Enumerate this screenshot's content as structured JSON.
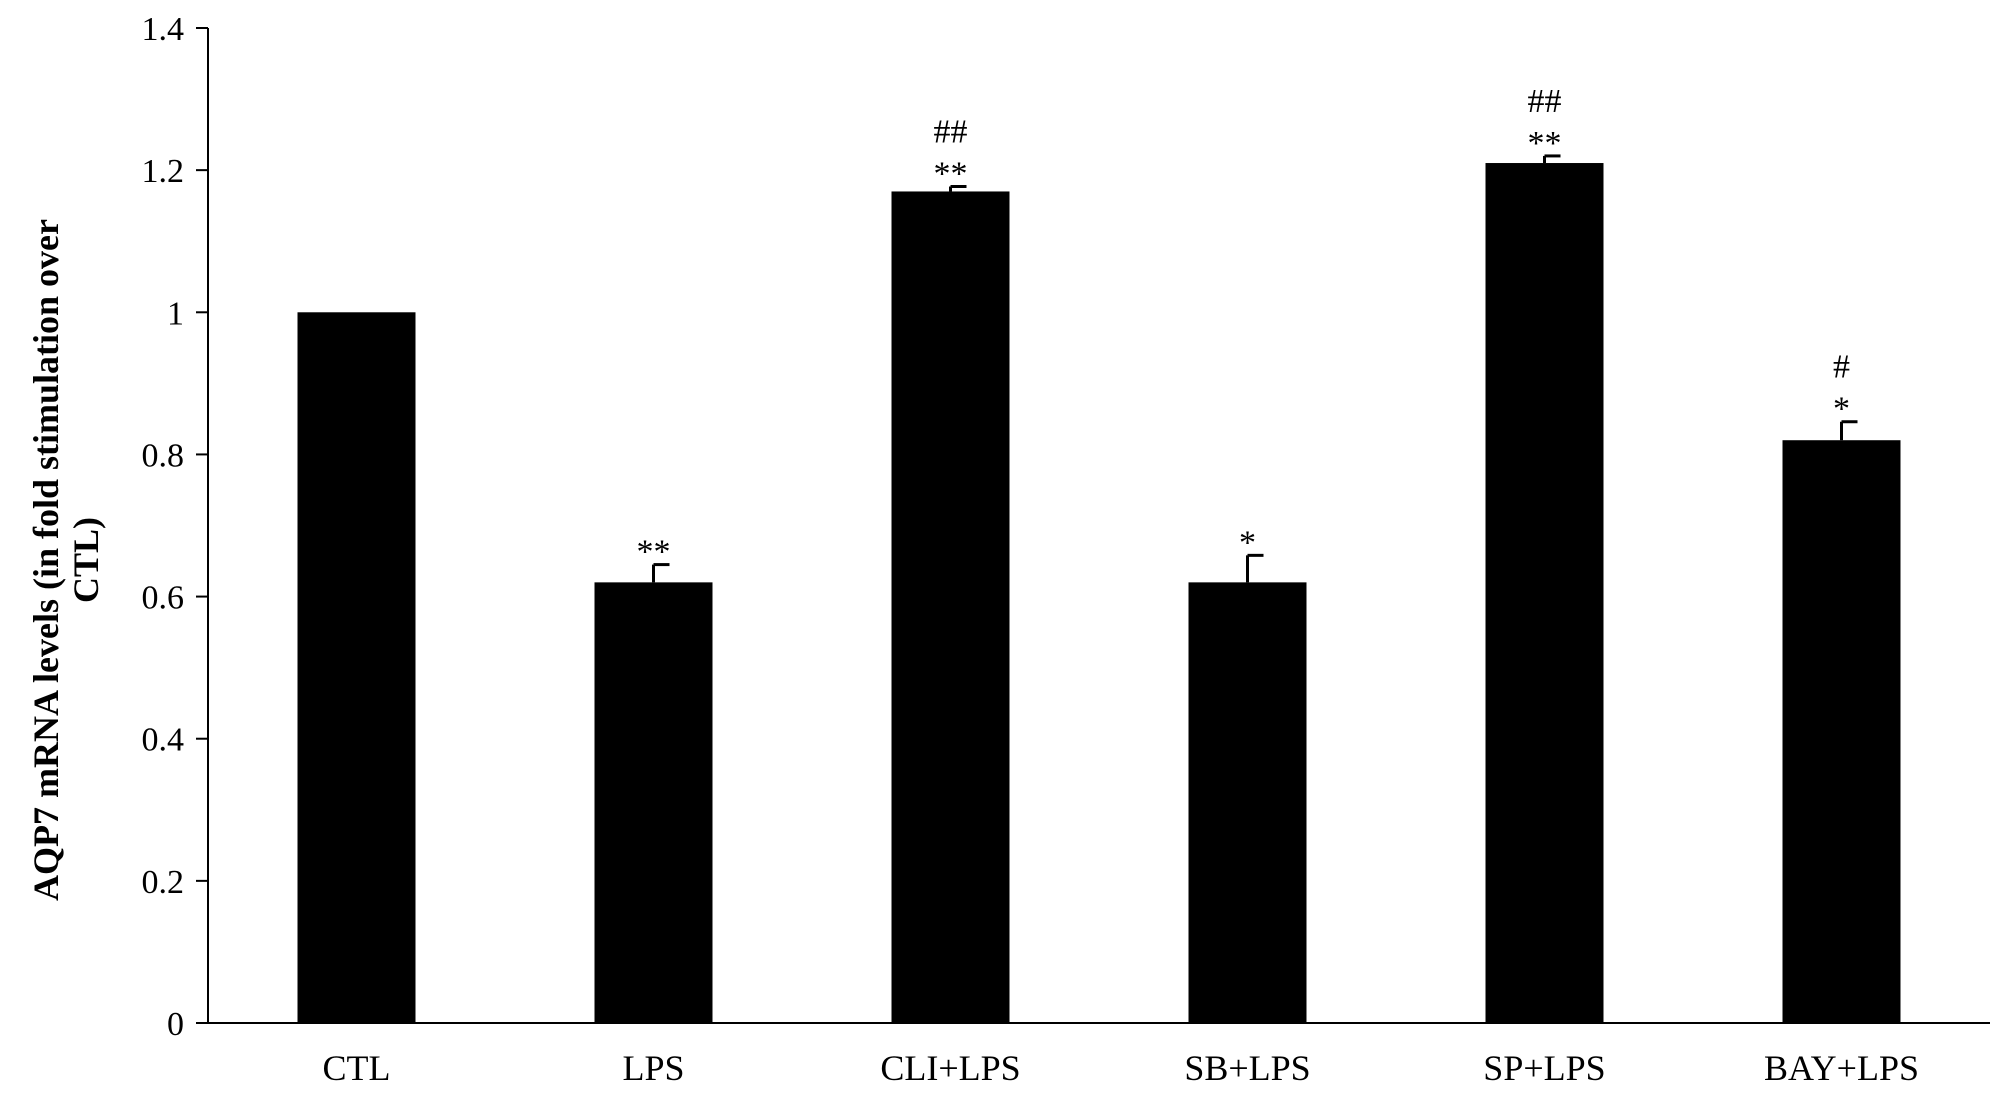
{
  "chart_data": {
    "type": "bar",
    "categories": [
      "CTL",
      "LPS",
      "CLI+LPS",
      "SB+LPS",
      "SP+LPS",
      "BAY+LPS"
    ],
    "series": [
      {
        "values": [
          1.0,
          0.62,
          1.17,
          0.62,
          1.21,
          0.82
        ],
        "errors": [
          0.0,
          0.025,
          0.007,
          0.038,
          0.01,
          0.026
        ],
        "significance_star": [
          "",
          "**",
          "**",
          "*",
          "**",
          "*"
        ],
        "significance_hash": [
          "",
          "",
          "##",
          "",
          "##",
          "#"
        ],
        "color": "#000000"
      }
    ],
    "ylabel_line1": "AQP7 mRNA levels (in fold stimulation over",
    "ylabel_line2": "CTL)",
    "ylim": [
      0,
      1.4
    ],
    "yticks": [
      0,
      0.2,
      0.4,
      0.6,
      0.8,
      1,
      1.2,
      1.4
    ],
    "ytick_labels": [
      "0",
      "0.2",
      "0.4",
      "0.6",
      "0.8",
      "1",
      "1.2",
      "1.4"
    ],
    "grid": false,
    "legend": "none"
  }
}
